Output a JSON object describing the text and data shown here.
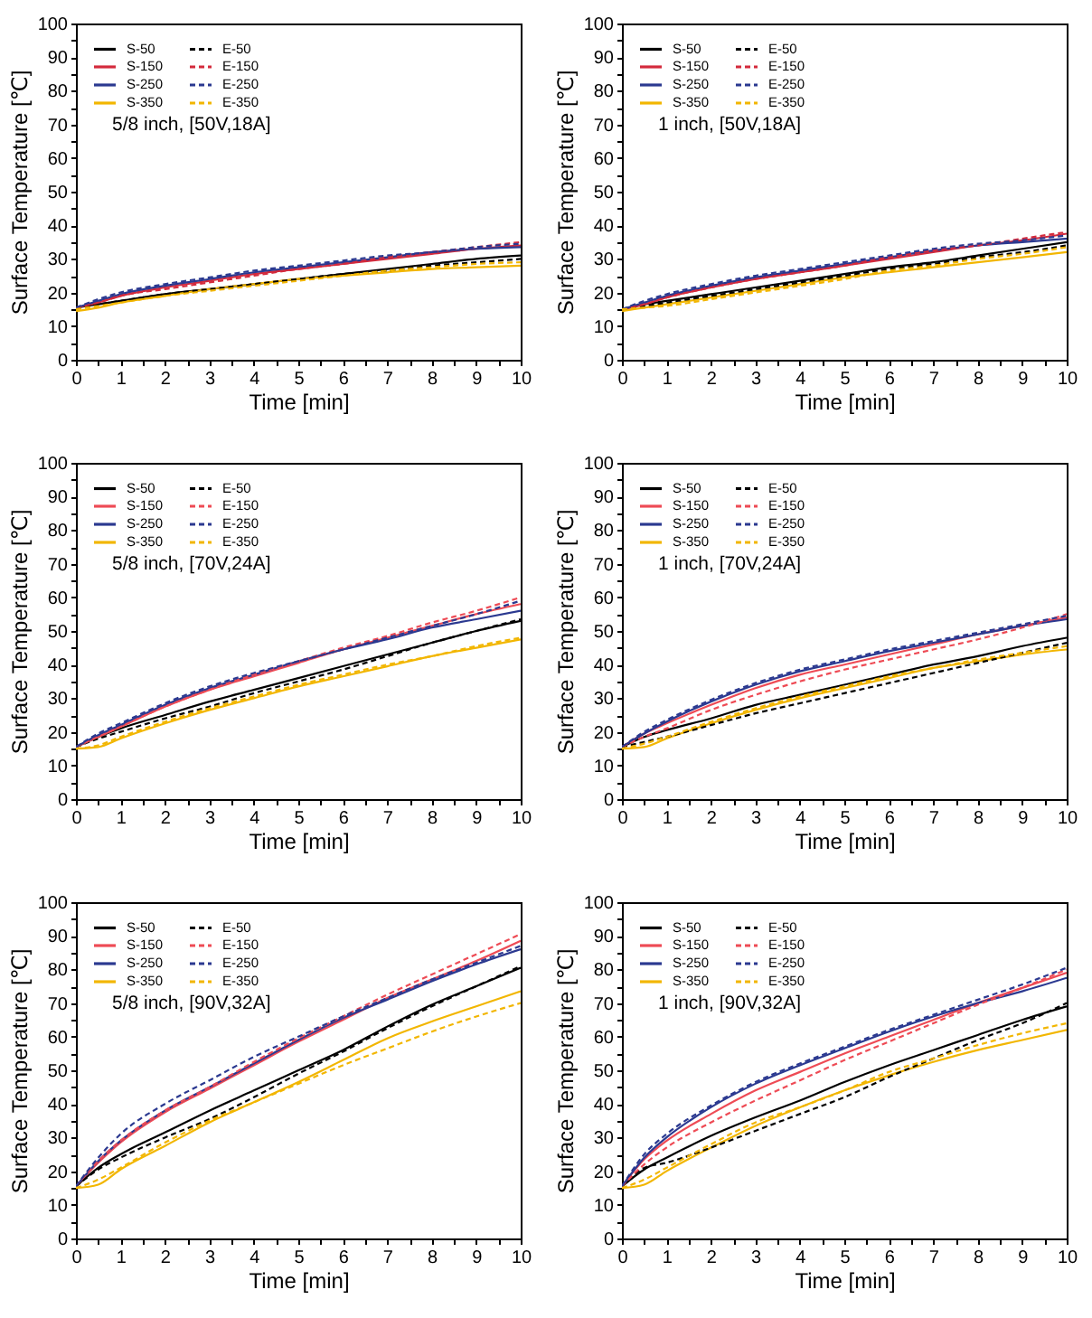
{
  "chart_data": [
    {
      "type": "line",
      "xlabel": "Time [min]",
      "ylabel": "Surface Temperature [℃]",
      "annotations": [
        "5/8 inch, [50V,18A]"
      ],
      "legend": "top left",
      "x": [
        0,
        0.5,
        1,
        2,
        3,
        4,
        5,
        6,
        7,
        8,
        9,
        10
      ],
      "xlim": [
        0,
        10
      ],
      "ylim": [
        0,
        100
      ],
      "xticks": [
        0,
        {
          "value": 0.5,
          "label": null
        },
        1,
        {
          "value": 1.5,
          "label": null
        },
        2,
        {
          "value": 2.5,
          "label": null
        },
        3,
        {
          "value": 3.5,
          "label": null
        },
        4,
        {
          "value": 4.5,
          "label": null
        },
        5,
        {
          "value": 5.5,
          "label": null
        },
        6,
        {
          "value": 6.5,
          "label": null
        },
        7,
        {
          "value": 7.5,
          "label": null
        },
        8,
        {
          "value": 8.5,
          "label": null
        },
        9,
        {
          "value": 9.5,
          "label": null
        },
        10
      ],
      "yticks": [
        0,
        {
          "value": 5,
          "label": null
        },
        10,
        {
          "value": 15,
          "label": null
        },
        20,
        {
          "value": 25,
          "label": null
        },
        30,
        {
          "value": 35,
          "label": null
        },
        40,
        {
          "value": 45,
          "label": null
        },
        50,
        {
          "value": 55,
          "label": null
        },
        60,
        {
          "value": 65,
          "label": null
        },
        70,
        {
          "value": 75,
          "label": null
        },
        80,
        {
          "value": 85,
          "label": null
        },
        90,
        {
          "value": 95,
          "label": null
        },
        100
      ],
      "series": [
        {
          "name": "S-50",
          "color": "#000000",
          "line_style": "solid",
          "values": [
            15.5,
            16.5,
            17.5,
            19.5,
            21,
            22.5,
            24,
            25.5,
            27,
            28.5,
            30,
            31
          ]
        },
        {
          "name": "S-150",
          "color": "#d42a3c",
          "line_style": "solid",
          "values": [
            15.5,
            17,
            19,
            21.5,
            23.5,
            25.5,
            27,
            28.5,
            30,
            31.5,
            33,
            34
          ]
        },
        {
          "name": "S-250",
          "color": "#2b3990",
          "line_style": "solid",
          "values": [
            15.5,
            17.5,
            19.5,
            22,
            24,
            26,
            27.5,
            29,
            30.5,
            32,
            33,
            33.5
          ]
        },
        {
          "name": "S-350",
          "color": "#f2b600",
          "line_style": "solid",
          "values": [
            14.5,
            15.5,
            17,
            19,
            21,
            22.5,
            24,
            25,
            26,
            27,
            27.5,
            28
          ]
        },
        {
          "name": "E-50",
          "color": "#000000",
          "line_style": "dashed",
          "values": [
            15.5,
            16.5,
            17.5,
            19.5,
            21,
            22.5,
            24,
            25.5,
            26.5,
            28,
            29,
            30
          ]
        },
        {
          "name": "E-150",
          "color": "#d42a3c",
          "line_style": "dashed",
          "values": [
            15.5,
            17,
            19,
            21,
            23,
            25,
            27,
            28.5,
            30.5,
            32,
            33.5,
            35
          ]
        },
        {
          "name": "E-250",
          "color": "#2b3990",
          "line_style": "dashed",
          "values": [
            15.5,
            18,
            20,
            22.5,
            24.5,
            26.5,
            28,
            29.5,
            31,
            32,
            33.5,
            34.5
          ]
        },
        {
          "name": "E-350",
          "color": "#f2b600",
          "line_style": "dashed",
          "values": [
            15,
            16,
            17,
            19,
            20.5,
            22,
            23.5,
            25,
            26.5,
            27.5,
            28.5,
            29
          ]
        }
      ]
    },
    {
      "type": "line",
      "xlabel": "Time [min]",
      "ylabel": "Surface Temperature [℃]",
      "annotations": [
        "1 inch, [50V,18A]"
      ],
      "legend": "top left",
      "x": [
        0,
        0.5,
        1,
        2,
        3,
        4,
        5,
        6,
        7,
        8,
        9,
        10
      ],
      "xlim": [
        0,
        10
      ],
      "ylim": [
        0,
        100
      ],
      "xticks": [
        0,
        {
          "value": 0.5,
          "label": null
        },
        1,
        {
          "value": 1.5,
          "label": null
        },
        2,
        {
          "value": 2.5,
          "label": null
        },
        3,
        {
          "value": 3.5,
          "label": null
        },
        4,
        {
          "value": 4.5,
          "label": null
        },
        5,
        {
          "value": 5.5,
          "label": null
        },
        6,
        {
          "value": 6.5,
          "label": null
        },
        7,
        {
          "value": 7.5,
          "label": null
        },
        8,
        {
          "value": 8.5,
          "label": null
        },
        9,
        {
          "value": 9.5,
          "label": null
        },
        10
      ],
      "yticks": [
        0,
        {
          "value": 5,
          "label": null
        },
        10,
        {
          "value": 15,
          "label": null
        },
        20,
        {
          "value": 25,
          "label": null
        },
        30,
        {
          "value": 35,
          "label": null
        },
        40,
        {
          "value": 45,
          "label": null
        },
        50,
        {
          "value": 55,
          "label": null
        },
        60,
        {
          "value": 65,
          "label": null
        },
        70,
        {
          "value": 75,
          "label": null
        },
        80,
        {
          "value": 85,
          "label": null
        },
        90,
        {
          "value": 95,
          "label": null
        },
        100
      ],
      "series": [
        {
          "name": "S-50",
          "color": "#000000",
          "line_style": "solid",
          "values": [
            15,
            16.5,
            17.5,
            19.5,
            21.5,
            23.5,
            25.5,
            27.5,
            29,
            31,
            33,
            35
          ]
        },
        {
          "name": "S-150",
          "color": "#d42a3c",
          "line_style": "solid",
          "values": [
            15,
            16.5,
            18.5,
            21.5,
            24,
            26,
            28,
            30,
            32,
            34,
            35.5,
            37.5
          ]
        },
        {
          "name": "S-250",
          "color": "#2b3990",
          "line_style": "solid",
          "values": [
            15,
            17,
            19,
            22,
            24.5,
            26.5,
            28.5,
            30.5,
            32.5,
            34,
            35,
            36
          ]
        },
        {
          "name": "S-350",
          "color": "#f2b600",
          "line_style": "solid",
          "values": [
            14.5,
            15.5,
            16.5,
            18.5,
            20.5,
            22.5,
            24.5,
            26,
            27.5,
            29,
            30.5,
            32
          ]
        },
        {
          "name": "E-50",
          "color": "#000000",
          "line_style": "dashed",
          "values": [
            15,
            16,
            17,
            19,
            21,
            23,
            25,
            27,
            28.5,
            30.5,
            32,
            34
          ]
        },
        {
          "name": "E-150",
          "color": "#d42a3c",
          "line_style": "dashed",
          "values": [
            15,
            16.5,
            18.5,
            21.5,
            24,
            26,
            28,
            30.5,
            32.5,
            34,
            36,
            38
          ]
        },
        {
          "name": "E-250",
          "color": "#2b3990",
          "line_style": "dashed",
          "values": [
            15,
            17.5,
            19.5,
            22.5,
            25,
            27,
            29,
            31,
            33,
            34.5,
            35.5,
            37
          ]
        },
        {
          "name": "E-350",
          "color": "#f2b600",
          "line_style": "dashed",
          "values": [
            15,
            15.5,
            16,
            18,
            20,
            22,
            24,
            26.5,
            28,
            30,
            31.5,
            33.5
          ]
        }
      ]
    },
    {
      "type": "line",
      "xlabel": "Time [min]",
      "ylabel": "Surface Temperature [℃]",
      "annotations": [
        "5/8 inch, [70V,24A]"
      ],
      "legend": "top left",
      "x": [
        0,
        0.5,
        1,
        2,
        3,
        4,
        5,
        6,
        7,
        8,
        9,
        10
      ],
      "xlim": [
        0,
        10
      ],
      "ylim": [
        0,
        100
      ],
      "xticks": [
        0,
        {
          "value": 0.5,
          "label": null
        },
        1,
        {
          "value": 1.5,
          "label": null
        },
        2,
        {
          "value": 2.5,
          "label": null
        },
        3,
        {
          "value": 3.5,
          "label": null
        },
        4,
        {
          "value": 4.5,
          "label": null
        },
        5,
        {
          "value": 5.5,
          "label": null
        },
        6,
        {
          "value": 6.5,
          "label": null
        },
        7,
        {
          "value": 7.5,
          "label": null
        },
        8,
        {
          "value": 8.5,
          "label": null
        },
        9,
        {
          "value": 9.5,
          "label": null
        },
        10
      ],
      "yticks": [
        0,
        {
          "value": 5,
          "label": null
        },
        10,
        {
          "value": 15,
          "label": null
        },
        20,
        {
          "value": 25,
          "label": null
        },
        30,
        {
          "value": 35,
          "label": null
        },
        40,
        {
          "value": 45,
          "label": null
        },
        50,
        {
          "value": 55,
          "label": null
        },
        60,
        {
          "value": 65,
          "label": null
        },
        70,
        {
          "value": 75,
          "label": null
        },
        80,
        {
          "value": 85,
          "label": null
        },
        90,
        {
          "value": 95,
          "label": null
        },
        100
      ],
      "series": [
        {
          "name": "S-50",
          "color": "#000000",
          "line_style": "solid",
          "values": [
            15.5,
            18.5,
            21,
            25,
            29,
            32.5,
            36,
            39.5,
            43,
            46.5,
            50,
            53
          ]
        },
        {
          "name": "S-150",
          "color": "#ee4b55",
          "line_style": "solid",
          "values": [
            15.5,
            18.5,
            21.5,
            27.5,
            32.5,
            36.5,
            40.5,
            44.5,
            48,
            51.5,
            55,
            58
          ]
        },
        {
          "name": "S-250",
          "color": "#2b3990",
          "line_style": "solid",
          "values": [
            15.5,
            19,
            22,
            28,
            33,
            37,
            41,
            44.5,
            47.5,
            51,
            53.5,
            56
          ]
        },
        {
          "name": "S-350",
          "color": "#f2b600",
          "line_style": "solid",
          "values": [
            15,
            15.5,
            18,
            22.5,
            26.5,
            30,
            33.5,
            36.5,
            39.5,
            42.5,
            45,
            47.5
          ]
        },
        {
          "name": "E-50",
          "color": "#000000",
          "line_style": "dashed",
          "values": [
            15.5,
            18,
            20,
            24,
            27.5,
            31.5,
            35,
            38.5,
            42.5,
            46.5,
            50,
            53.5
          ]
        },
        {
          "name": "E-150",
          "color": "#ee4b55",
          "line_style": "dashed",
          "values": [
            15.5,
            18.5,
            21.5,
            27.5,
            32.5,
            37,
            41,
            45,
            48.5,
            52.5,
            56,
            60
          ]
        },
        {
          "name": "E-250",
          "color": "#2b3990",
          "line_style": "dashed",
          "values": [
            15.5,
            19.5,
            22.5,
            28.5,
            33.5,
            37.5,
            41,
            44.5,
            48,
            51.5,
            55,
            59
          ]
        },
        {
          "name": "E-350",
          "color": "#f2b600",
          "line_style": "dashed",
          "values": [
            15,
            16,
            18.5,
            23,
            27,
            30.5,
            34,
            37,
            40,
            42.5,
            45.5,
            48
          ]
        }
      ]
    },
    {
      "type": "line",
      "xlabel": "Time [min]",
      "ylabel": "Surface Temperature [℃]",
      "annotations": [
        "1 inch, [70V,24A]"
      ],
      "legend": "top left",
      "x": [
        0,
        0.5,
        1,
        2,
        3,
        4,
        5,
        6,
        7,
        8,
        9,
        10
      ],
      "xlim": [
        0,
        10
      ],
      "ylim": [
        0,
        100
      ],
      "xticks": [
        0,
        {
          "value": 0.5,
          "label": null
        },
        1,
        {
          "value": 1.5,
          "label": null
        },
        2,
        {
          "value": 2.5,
          "label": null
        },
        3,
        {
          "value": 3.5,
          "label": null
        },
        4,
        {
          "value": 4.5,
          "label": null
        },
        5,
        {
          "value": 5.5,
          "label": null
        },
        6,
        {
          "value": 6.5,
          "label": null
        },
        7,
        {
          "value": 7.5,
          "label": null
        },
        8,
        {
          "value": 8.5,
          "label": null
        },
        9,
        {
          "value": 9.5,
          "label": null
        },
        10
      ],
      "yticks": [
        0,
        {
          "value": 5,
          "label": null
        },
        10,
        {
          "value": 15,
          "label": null
        },
        20,
        {
          "value": 25,
          "label": null
        },
        30,
        {
          "value": 35,
          "label": null
        },
        40,
        {
          "value": 45,
          "label": null
        },
        50,
        {
          "value": 55,
          "label": null
        },
        60,
        {
          "value": 65,
          "label": null
        },
        70,
        {
          "value": 75,
          "label": null
        },
        80,
        {
          "value": 85,
          "label": null
        },
        90,
        {
          "value": 95,
          "label": null
        },
        100
      ],
      "series": [
        {
          "name": "S-50",
          "color": "#000000",
          "line_style": "solid",
          "values": [
            15.5,
            18.5,
            20.5,
            24,
            28,
            31,
            34,
            37,
            40,
            42.5,
            45.5,
            48
          ]
        },
        {
          "name": "S-150",
          "color": "#ee4b55",
          "line_style": "solid",
          "values": [
            15.5,
            19.5,
            22.5,
            28,
            33,
            37,
            40,
            43,
            46,
            49,
            51.5,
            54
          ]
        },
        {
          "name": "S-250",
          "color": "#2b3990",
          "line_style": "solid",
          "values": [
            15.5,
            19.5,
            23,
            29,
            34,
            38,
            41,
            44,
            46.5,
            49,
            51.5,
            53.5
          ]
        },
        {
          "name": "S-350",
          "color": "#f2b600",
          "line_style": "solid",
          "values": [
            15,
            15.5,
            18,
            22.5,
            26.5,
            30,
            33,
            36,
            39,
            41,
            43,
            44.5
          ]
        },
        {
          "name": "E-50",
          "color": "#000000",
          "line_style": "dashed",
          "values": [
            15.5,
            17,
            18.5,
            22,
            25.5,
            28.5,
            31.5,
            34.5,
            37.5,
            40.5,
            43.5,
            46.5
          ]
        },
        {
          "name": "E-150",
          "color": "#ee4b55",
          "line_style": "dashed",
          "values": [
            15.5,
            18.5,
            21,
            26.5,
            31,
            35,
            38.5,
            41.5,
            44.5,
            47.5,
            51,
            55
          ]
        },
        {
          "name": "E-250",
          "color": "#2b3990",
          "line_style": "dashed",
          "values": [
            15.5,
            20,
            23.5,
            29.5,
            34.5,
            38.5,
            41.5,
            44.5,
            47,
            49.5,
            52,
            54.5
          ]
        },
        {
          "name": "E-350",
          "color": "#f2b600",
          "line_style": "dashed",
          "values": [
            15,
            16.5,
            18.5,
            23,
            27,
            30.5,
            33.5,
            36.5,
            39,
            41.5,
            43.5,
            45.5
          ]
        }
      ]
    },
    {
      "type": "line",
      "xlabel": "Time [min]",
      "ylabel": "Surface Temperature [℃]",
      "annotations": [
        "5/8 inch, [90V,32A]"
      ],
      "legend": "top left",
      "x": [
        0,
        0.5,
        1,
        2,
        3,
        4,
        5,
        6,
        7,
        8,
        9,
        10
      ],
      "xlim": [
        0,
        10
      ],
      "ylim": [
        0,
        100
      ],
      "xticks": [
        0,
        {
          "value": 0.5,
          "label": null
        },
        1,
        {
          "value": 1.5,
          "label": null
        },
        2,
        {
          "value": 2.5,
          "label": null
        },
        3,
        {
          "value": 3.5,
          "label": null
        },
        4,
        {
          "value": 4.5,
          "label": null
        },
        5,
        {
          "value": 5.5,
          "label": null
        },
        6,
        {
          "value": 6.5,
          "label": null
        },
        7,
        {
          "value": 7.5,
          "label": null
        },
        8,
        {
          "value": 8.5,
          "label": null
        },
        9,
        {
          "value": 9.5,
          "label": null
        },
        10
      ],
      "yticks": [
        0,
        {
          "value": 5,
          "label": null
        },
        10,
        {
          "value": 15,
          "label": null
        },
        20,
        {
          "value": 25,
          "label": null
        },
        30,
        {
          "value": 35,
          "label": null
        },
        40,
        {
          "value": 45,
          "label": null
        },
        50,
        {
          "value": 55,
          "label": null
        },
        60,
        {
          "value": 65,
          "label": null
        },
        70,
        {
          "value": 75,
          "label": null
        },
        80,
        {
          "value": 85,
          "label": null
        },
        90,
        {
          "value": 95,
          "label": null
        },
        100
      ],
      "series": [
        {
          "name": "S-50",
          "color": "#000000",
          "line_style": "solid",
          "values": [
            15.5,
            21,
            25,
            31.5,
            38,
            44,
            50,
            56,
            63,
            69.5,
            75,
            80.5
          ]
        },
        {
          "name": "S-150",
          "color": "#ee4b55",
          "line_style": "solid",
          "values": [
            15.5,
            22.5,
            28.5,
            37.5,
            44.5,
            51.5,
            58.5,
            65,
            71.5,
            77,
            82.5,
            88.5
          ]
        },
        {
          "name": "S-250",
          "color": "#2b3990",
          "line_style": "solid",
          "values": [
            15.5,
            23,
            29,
            38,
            45,
            52,
            59,
            65.5,
            71,
            76.5,
            81.5,
            86
          ]
        },
        {
          "name": "S-350",
          "color": "#f2b600",
          "line_style": "solid",
          "values": [
            15,
            16,
            20.5,
            27.5,
            34.5,
            40.5,
            46.5,
            53,
            59.5,
            64.5,
            69,
            73.5
          ]
        },
        {
          "name": "E-50",
          "color": "#000000",
          "line_style": "dashed",
          "values": [
            15.5,
            20.5,
            24,
            30,
            35.5,
            42,
            49,
            55.5,
            62.5,
            69,
            75,
            81
          ]
        },
        {
          "name": "E-150",
          "color": "#ee4b55",
          "line_style": "dashed",
          "values": [
            15.5,
            23,
            29,
            38,
            45,
            52.5,
            59.5,
            66,
            72.5,
            78.5,
            84.5,
            90.5
          ]
        },
        {
          "name": "E-250",
          "color": "#2b3990",
          "line_style": "dashed",
          "values": [
            15.5,
            24,
            31,
            40,
            47,
            54,
            60,
            66,
            71.5,
            77,
            82,
            87
          ]
        },
        {
          "name": "E-350",
          "color": "#f2b600",
          "line_style": "dashed",
          "values": [
            15,
            17.5,
            21,
            28.5,
            35,
            40.5,
            46,
            51.5,
            56.5,
            61.5,
            66,
            70
          ]
        }
      ]
    },
    {
      "type": "line",
      "xlabel": "Time [min]",
      "ylabel": "Surface Temperature [℃]",
      "annotations": [
        "1 inch, [90V,32A]"
      ],
      "legend": "top left",
      "x": [
        0,
        0.5,
        1,
        2,
        3,
        4,
        5,
        6,
        7,
        8,
        9,
        10
      ],
      "xlim": [
        0,
        10
      ],
      "ylim": [
        0,
        100
      ],
      "xticks": [
        0,
        {
          "value": 0.5,
          "label": null
        },
        1,
        {
          "value": 1.5,
          "label": null
        },
        2,
        {
          "value": 2.5,
          "label": null
        },
        3,
        {
          "value": 3.5,
          "label": null
        },
        4,
        {
          "value": 4.5,
          "label": null
        },
        5,
        {
          "value": 5.5,
          "label": null
        },
        6,
        {
          "value": 6.5,
          "label": null
        },
        7,
        {
          "value": 7.5,
          "label": null
        },
        8,
        {
          "value": 8.5,
          "label": null
        },
        9,
        {
          "value": 9.5,
          "label": null
        },
        10
      ],
      "yticks": [
        0,
        {
          "value": 5,
          "label": null
        },
        10,
        {
          "value": 15,
          "label": null
        },
        20,
        {
          "value": 25,
          "label": null
        },
        30,
        {
          "value": 35,
          "label": null
        },
        40,
        {
          "value": 45,
          "label": null
        },
        50,
        {
          "value": 55,
          "label": null
        },
        60,
        {
          "value": 65,
          "label": null
        },
        70,
        {
          "value": 75,
          "label": null
        },
        80,
        {
          "value": 85,
          "label": null
        },
        90,
        {
          "value": 95,
          "label": null
        },
        100
      ],
      "series": [
        {
          "name": "S-50",
          "color": "#000000",
          "line_style": "solid",
          "values": [
            15.5,
            20.5,
            24,
            30.5,
            36,
            41,
            46.5,
            51.5,
            56,
            60.5,
            65,
            69
          ]
        },
        {
          "name": "S-150",
          "color": "#ee4b55",
          "line_style": "solid",
          "values": [
            15.5,
            23.5,
            29,
            37,
            44,
            49.5,
            55,
            60,
            65,
            70,
            74.5,
            79
          ]
        },
        {
          "name": "S-250",
          "color": "#2b3990",
          "line_style": "solid",
          "values": [
            15.5,
            24,
            30,
            39,
            46,
            51.5,
            56.5,
            61.5,
            66,
            70,
            73.5,
            77.5
          ]
        },
        {
          "name": "S-350",
          "color": "#f2b600",
          "line_style": "solid",
          "values": [
            15,
            16,
            20,
            27,
            33.5,
            39,
            44,
            48.5,
            52.5,
            56,
            59,
            62
          ]
        },
        {
          "name": "E-50",
          "color": "#000000",
          "line_style": "dashed",
          "values": [
            15.5,
            21,
            22.5,
            27,
            32,
            37,
            42,
            48,
            53.5,
            59,
            64,
            70
          ]
        },
        {
          "name": "E-150",
          "color": "#ee4b55",
          "line_style": "dashed",
          "values": [
            15.5,
            22,
            27,
            34.5,
            41,
            47,
            53,
            58.5,
            64,
            69.5,
            74.5,
            80
          ]
        },
        {
          "name": "E-250",
          "color": "#2b3990",
          "line_style": "dashed",
          "values": [
            15.5,
            25,
            31,
            39.5,
            46.5,
            52,
            57,
            62,
            66.5,
            71,
            75.5,
            80.5
          ]
        },
        {
          "name": "E-350",
          "color": "#f2b600",
          "line_style": "dashed",
          "values": [
            15,
            17.5,
            21,
            28,
            34.5,
            39,
            44,
            49.5,
            53.5,
            57.5,
            61,
            64
          ]
        }
      ]
    }
  ]
}
